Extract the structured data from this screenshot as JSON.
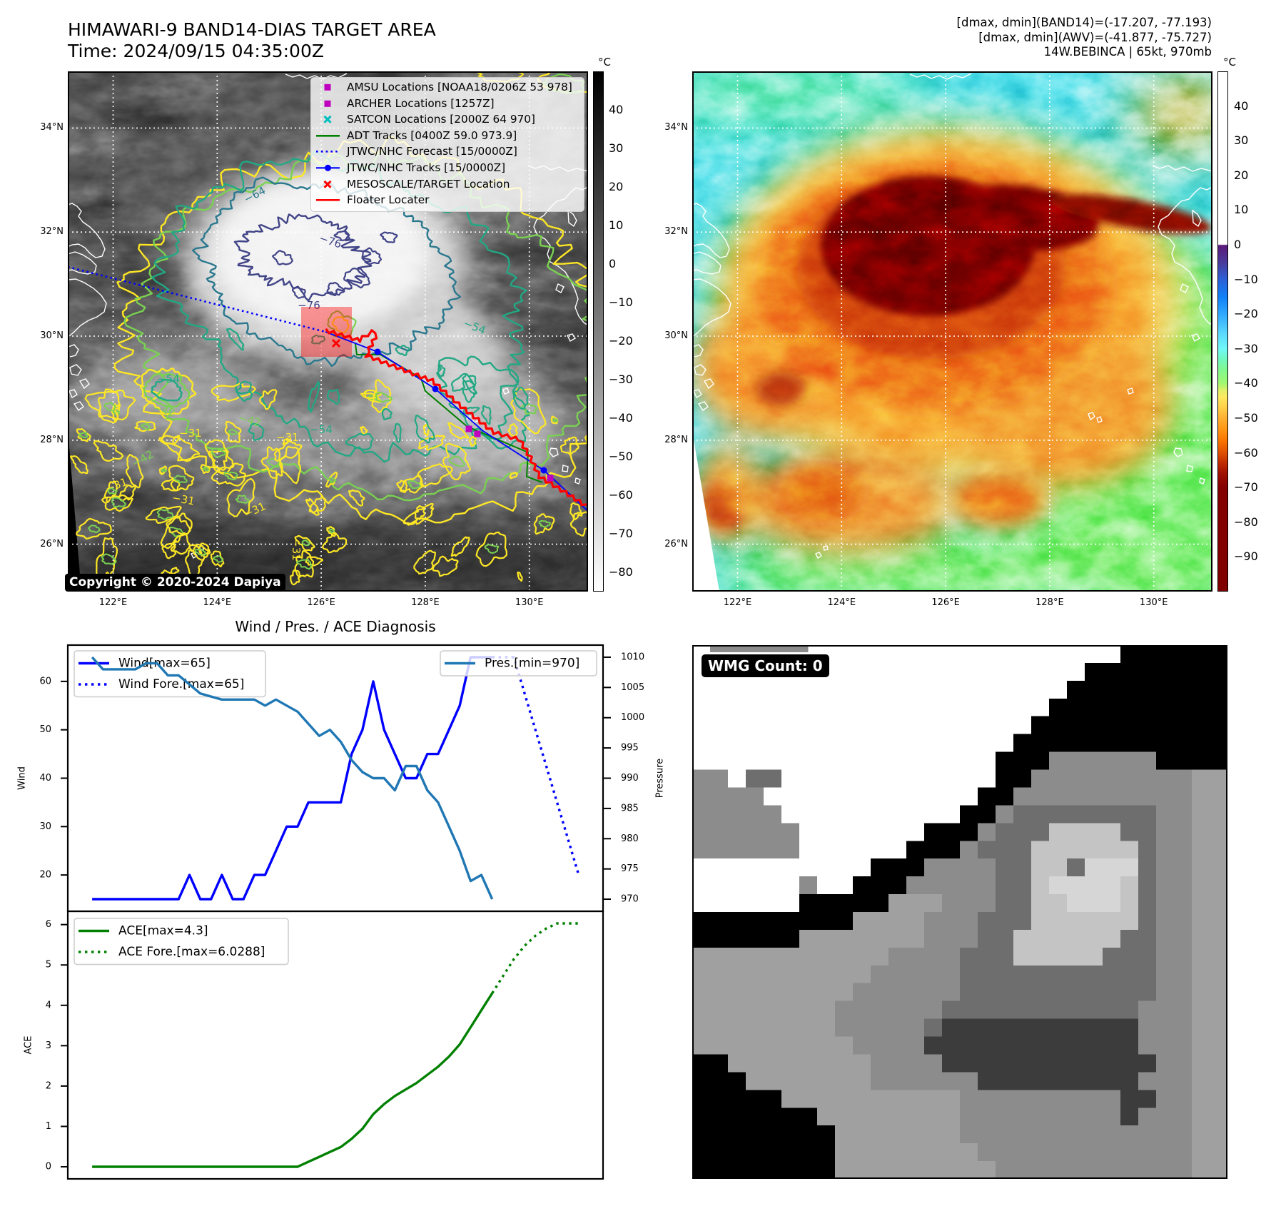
{
  "header": {
    "title": "HIMAWARI-9 BAND14-DIAS TARGET AREA",
    "time": "Time: 2024/09/15 04:35:00Z",
    "stats": [
      "[dmax, dmin](BAND14)=(-17.207, -77.193)",
      "[dmax, dmin](AWV)=(-41.877, -75.727)",
      "14W.BEBINCA | 65kt, 970mb"
    ]
  },
  "ir_map": {
    "lat_labels": [
      "34°N",
      "32°N",
      "30°N",
      "28°N",
      "26°N"
    ],
    "lon_labels": [
      "122°E",
      "124°E",
      "126°E",
      "128°E",
      "130°E"
    ],
    "colorbar": {
      "unit": "°C",
      "vmin": -85,
      "vmax": 50,
      "ticks": [
        "40",
        "30",
        "20",
        "10",
        "0",
        "−10",
        "−20",
        "−30",
        "−40",
        "−50",
        "−60",
        "−70",
        "−80"
      ]
    },
    "contour_colors": {
      "−31": "#fde725",
      "−42": "#7ad151",
      "−54": "#22a884",
      "−64": "#2a788e",
      "−76": "#414487"
    },
    "contour_labels": [
      "−64",
      "−76",
      "−76",
      "−54",
      "−54",
      "−54",
      "−42",
      "−42",
      "−42",
      "−31",
      "−31",
      "−31",
      "−31",
      "−31",
      "−31"
    ],
    "legend": [
      {
        "label": "AMSU Locations [NOAA18/0206Z 53 978]",
        "symbol": "square",
        "color": "#bf00bf"
      },
      {
        "label": "ARCHER Locations [1257Z]",
        "symbol": "square",
        "color": "#bf00bf"
      },
      {
        "label": "SATCON Locations [2000Z 64 970]",
        "symbol": "x",
        "color": "#00bfbf"
      },
      {
        "label": "ADT Tracks [0400Z 59.0 973.9]",
        "symbol": "line",
        "color": "#008000"
      },
      {
        "label": "JTWC/NHC Forecast [15/0000Z]",
        "symbol": "dotted-line",
        "color": "#0000ff"
      },
      {
        "label": "JTWC/NHC Tracks [15/0000Z]",
        "symbol": "line-dot",
        "color": "#0000ff"
      },
      {
        "label": "MESOSCALE/TARGET Location",
        "symbol": "x",
        "color": "#ff0000"
      },
      {
        "label": "Floater Locater",
        "symbol": "line",
        "color": "#ff0000"
      }
    ],
    "copyright": "Copyright © 2020-2024 Dapiya"
  },
  "awv_map": {
    "lat_labels": [
      "34°N",
      "32°N",
      "30°N",
      "28°N",
      "26°N"
    ],
    "lon_labels": [
      "122°E",
      "124°E",
      "126°E",
      "128°E",
      "130°E"
    ],
    "colorbar": {
      "unit": "°C",
      "vmin": -100,
      "vmax": 50,
      "ticks": [
        "40",
        "30",
        "20",
        "10",
        "0",
        "−10",
        "−20",
        "−30",
        "−40",
        "−50",
        "−60",
        "−70",
        "−80",
        "−90"
      ]
    }
  },
  "chart_data": {
    "type": "line",
    "title": "Wind / Pres. / ACE Diagnosis",
    "xlim": [
      -2.25,
      47.25
    ],
    "panels": [
      {
        "id": "wind-pressure",
        "ylabel": "Wind",
        "ylim": [
          12.5,
          67.5
        ],
        "yticks": [
          20,
          30,
          40,
          50,
          60
        ],
        "y2label": "Pressure",
        "y2lim": [
          968,
          1012
        ],
        "y2ticks": [
          970,
          975,
          980,
          985,
          990,
          995,
          1000,
          1005,
          1010
        ],
        "legend_left": "upper-left",
        "legend_right": "upper-right",
        "series": [
          {
            "name": "Wind[max=65]",
            "axis": "left",
            "color": "#0000ff",
            "style": "solid",
            "x": [
              0,
              1,
              2,
              3,
              4,
              5,
              6,
              7,
              8,
              9,
              10,
              11,
              12,
              13,
              14,
              15,
              16,
              17,
              18,
              19,
              20,
              21,
              22,
              23,
              24,
              25,
              26,
              27,
              28,
              29,
              30,
              31,
              32,
              33,
              34,
              35,
              36,
              37
            ],
            "y": [
              15,
              15,
              15,
              15,
              15,
              15,
              15,
              15,
              15,
              20,
              15,
              15,
              20,
              15,
              15,
              20,
              20,
              25,
              30,
              30,
              35,
              35,
              35,
              35,
              45,
              50,
              60,
              50,
              45,
              40,
              40,
              45,
              45,
              50,
              55,
              65,
              65,
              65
            ]
          },
          {
            "name": "Wind Fore.[max=65]",
            "axis": "left",
            "color": "#0000ff",
            "style": "dotted",
            "x": [
              37,
              39,
              45
            ],
            "y": [
              65,
              65,
              20
            ]
          },
          {
            "name": "Pres.[min=970]",
            "axis": "right",
            "color": "#1f77b4",
            "style": "solid",
            "x": [
              0,
              1,
              2,
              3,
              4,
              5,
              6,
              7,
              8,
              9,
              10,
              11,
              12,
              13,
              14,
              15,
              16,
              17,
              18,
              19,
              20,
              21,
              22,
              23,
              24,
              25,
              26,
              27,
              28,
              29,
              30,
              31,
              32,
              33,
              34,
              35,
              36,
              37
            ],
            "y": [
              1010,
              1008,
              1008,
              1008,
              1008,
              1009,
              1009,
              1007,
              1007,
              1005.5,
              1004,
              1003.5,
              1003,
              1003,
              1003,
              1003,
              1002,
              1003,
              1002,
              1001,
              999,
              997,
              998,
              996,
              993,
              991,
              990,
              990,
              988,
              992,
              992,
              988,
              986,
              982,
              978,
              973,
              974,
              970
            ]
          }
        ]
      },
      {
        "id": "ace",
        "ylabel": "ACE",
        "ylim": [
          -0.3,
          6.33
        ],
        "yticks": [
          0,
          1,
          2,
          3,
          4,
          5,
          6
        ],
        "legend_left": "upper-left",
        "series": [
          {
            "name": "ACE[max=4.3]",
            "axis": "left",
            "color": "#008000",
            "style": "solid",
            "x": [
              0,
              1,
              2,
              3,
              4,
              5,
              6,
              7,
              8,
              9,
              10,
              11,
              12,
              13,
              14,
              15,
              16,
              17,
              18,
              19,
              20,
              21,
              22,
              23,
              24,
              25,
              26,
              27,
              28,
              29,
              30,
              31,
              32,
              33,
              34,
              35,
              36,
              37
            ],
            "y": [
              0,
              0,
              0,
              0,
              0,
              0,
              0,
              0,
              0,
              0,
              0,
              0,
              0,
              0,
              0,
              0,
              0,
              0,
              0,
              0,
              0.1225,
              0.245,
              0.3675,
              0.49,
              0.6925,
              0.9425,
              1.3025,
              1.5525,
              1.755,
              1.915,
              2.075,
              2.2775,
              2.48,
              2.73,
              3.0325,
              3.455,
              3.8775,
              4.3
            ]
          },
          {
            "name": "ACE Fore.[max=6.0288]",
            "axis": "left",
            "color": "#008000",
            "style": "dotted",
            "x": [
              37,
              38,
              39,
              40,
              41,
              42,
              43,
              44,
              45
            ],
            "y": [
              4.3,
              4.7225,
              5.145,
              5.4756,
              5.7256,
              5.9062,
              6.0288,
              6.0288,
              6.0288
            ]
          }
        ]
      }
    ]
  },
  "wmg_panel": {
    "label": "WMG Count: 0"
  }
}
